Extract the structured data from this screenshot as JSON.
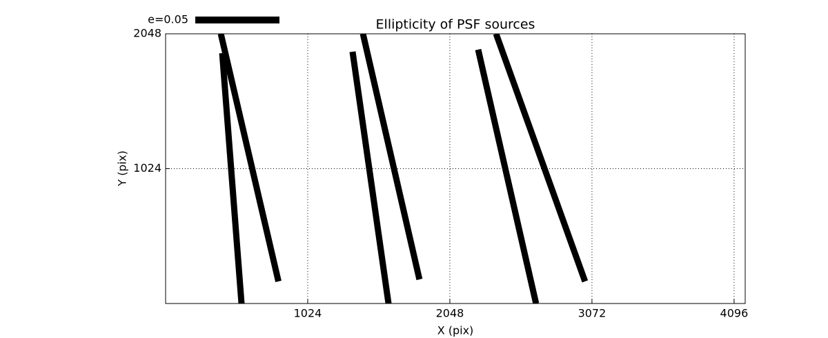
{
  "chart_data": {
    "type": "whisker",
    "title": "Ellipticity of PSF sources",
    "xlabel": "X (pix)",
    "ylabel": "Y (pix)",
    "key_label": "e=0.05",
    "color": "#000000",
    "grid": true,
    "xlim": [
      0,
      4176
    ],
    "ylim": [
      0,
      2048
    ],
    "xticks": [
      1024,
      2048,
      3072,
      4096
    ],
    "yticks": [
      1024,
      2048
    ],
    "segments": [
      {
        "x": [
          398,
          813
        ],
        "y": [
          2048,
          168
        ]
      },
      {
        "x": [
          408,
          547
        ],
        "y": [
          1901,
          0
        ]
      },
      {
        "x": [
          1347,
          1606
        ],
        "y": [
          1912,
          0
        ]
      },
      {
        "x": [
          1422,
          1829
        ],
        "y": [
          2048,
          183
        ]
      },
      {
        "x": [
          2252,
          2669
        ],
        "y": [
          1928,
          0
        ]
      },
      {
        "x": [
          2381,
          3022
        ],
        "y": [
          2048,
          168
        ]
      }
    ]
  }
}
